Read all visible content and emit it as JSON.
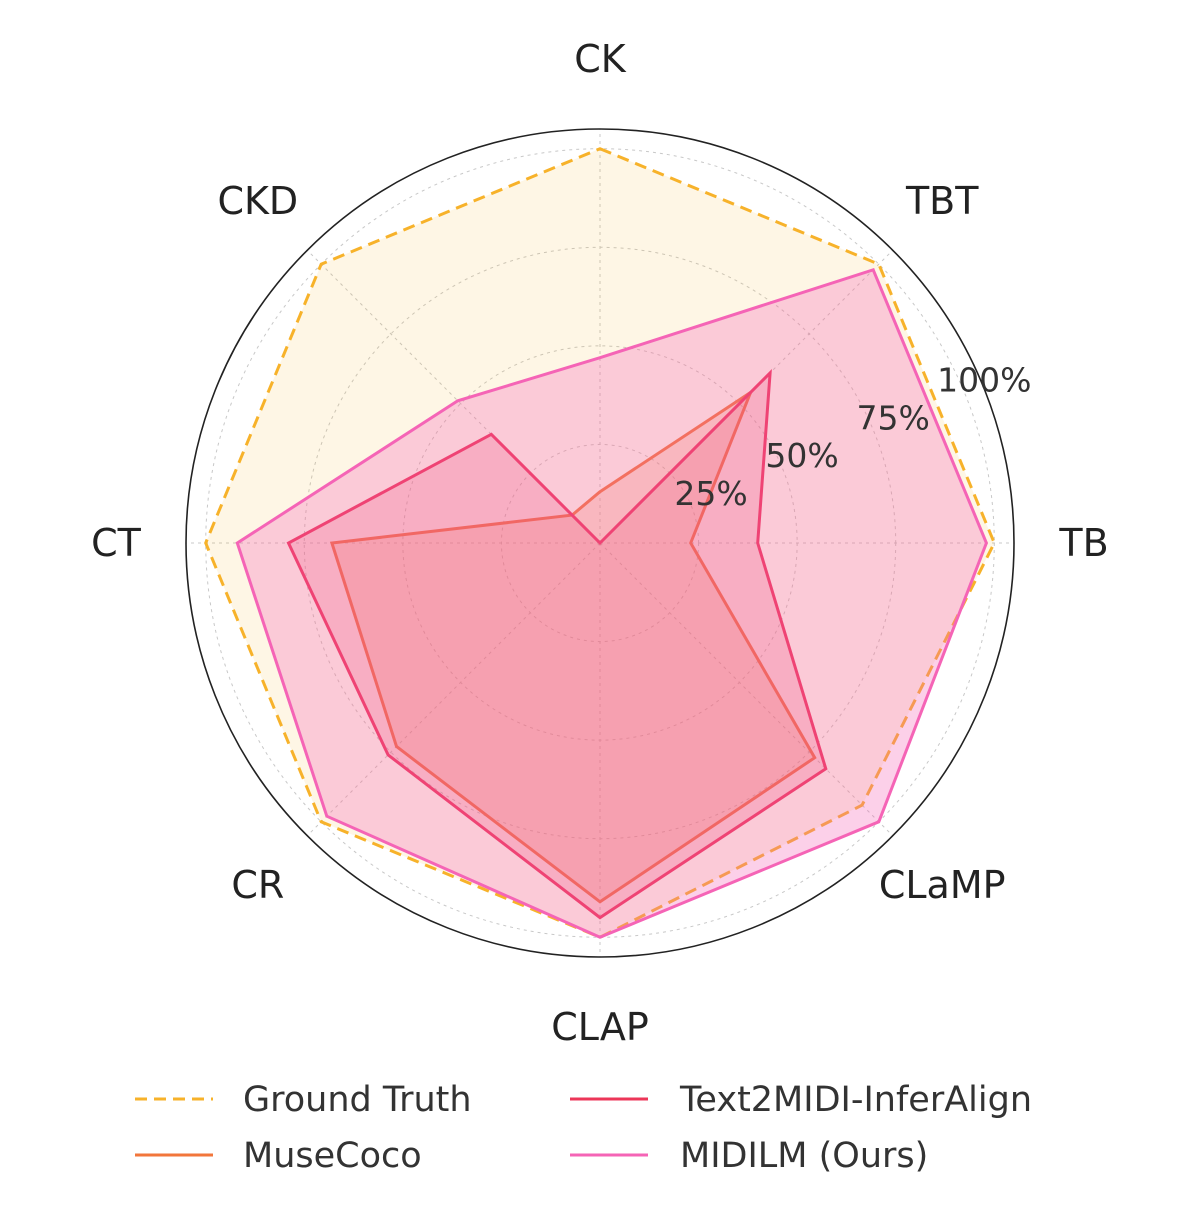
{
  "chart_data": {
    "type": "radar",
    "axes": [
      "CK",
      "TBT",
      "TB",
      "CLaMP",
      "CLAP",
      "CR",
      "CT",
      "CKD"
    ],
    "rmax": 105,
    "rticks": [
      25,
      50,
      75,
      100
    ],
    "rtick_labels": [
      "25%",
      "50%",
      "75%",
      "100%"
    ],
    "grid": true,
    "legend_position": "bottom",
    "series": [
      {
        "name": "Ground Truth",
        "values": [
          100,
          100,
          100,
          94,
          100,
          100,
          100,
          100
        ],
        "color": "#F7B22A",
        "dash": true,
        "fill_opacity": 0.12
      },
      {
        "name": "MuseCoco",
        "values": [
          13,
          54,
          23,
          77,
          91,
          73,
          68,
          10
        ],
        "color": "#F2763B",
        "dash": false,
        "fill_opacity": 0.2
      },
      {
        "name": "Text2MIDI-InferAlign",
        "values": [
          0,
          61,
          40,
          81,
          95,
          76,
          79,
          39
        ],
        "color": "#EC3658",
        "dash": false,
        "fill_opacity": 0.2
      },
      {
        "name": "MIDILM (Ours)",
        "values": [
          47,
          98,
          98,
          100,
          100,
          98,
          92,
          51
        ],
        "color": "#F564B6",
        "dash": false,
        "fill_opacity": 0.3
      }
    ]
  },
  "legend": {
    "items": [
      {
        "label": "Ground Truth",
        "color": "#F7B22A",
        "dash": true
      },
      {
        "label": "MuseCoco",
        "color": "#F2763B",
        "dash": false
      },
      {
        "label": "Text2MIDI-InferAlign",
        "color": "#EC3658",
        "dash": false
      },
      {
        "label": "MIDILM (Ours)",
        "color": "#F564B6",
        "dash": false
      }
    ]
  }
}
